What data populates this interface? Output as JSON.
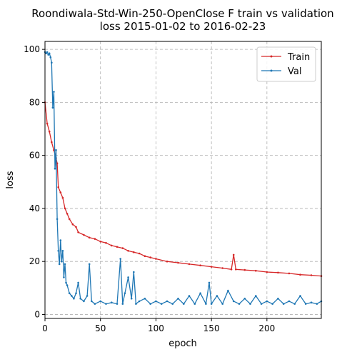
{
  "chart_data": {
    "type": "line",
    "title_lines": [
      "Roondiwala-Std-Win-250-OpenClose F train vs validation",
      "loss 2015-01-02 to 2016-02-23"
    ],
    "xlabel": "epoch",
    "ylabel": "loss",
    "xlim": [
      0,
      249
    ],
    "ylim": [
      -1.5,
      103
    ],
    "xticks": [
      0,
      50,
      100,
      150,
      200
    ],
    "yticks": [
      0,
      20,
      40,
      60,
      80,
      100
    ],
    "grid": true,
    "legend_position": "top-right",
    "series": [
      {
        "name": "Train",
        "color": "#d62728",
        "points": [
          [
            0,
            80
          ],
          [
            2,
            72
          ],
          [
            4,
            69
          ],
          [
            6,
            65
          ],
          [
            8,
            62
          ],
          [
            10,
            59
          ],
          [
            11,
            57
          ],
          [
            12,
            48
          ],
          [
            14,
            46
          ],
          [
            16,
            44
          ],
          [
            18,
            40
          ],
          [
            20,
            38
          ],
          [
            22,
            36
          ],
          [
            25,
            34
          ],
          [
            28,
            33
          ],
          [
            30,
            31
          ],
          [
            35,
            30
          ],
          [
            40,
            29
          ],
          [
            45,
            28.5
          ],
          [
            50,
            27.5
          ],
          [
            55,
            27
          ],
          [
            60,
            26
          ],
          [
            65,
            25.5
          ],
          [
            70,
            25
          ],
          [
            75,
            24
          ],
          [
            80,
            23.5
          ],
          [
            85,
            23
          ],
          [
            90,
            22
          ],
          [
            95,
            21.5
          ],
          [
            100,
            21
          ],
          [
            110,
            20
          ],
          [
            120,
            19.5
          ],
          [
            130,
            19
          ],
          [
            140,
            18.5
          ],
          [
            150,
            18
          ],
          [
            160,
            17.5
          ],
          [
            168,
            17
          ],
          [
            170,
            22.5
          ],
          [
            172,
            17
          ],
          [
            180,
            16.8
          ],
          [
            190,
            16.5
          ],
          [
            200,
            16
          ],
          [
            210,
            15.8
          ],
          [
            220,
            15.5
          ],
          [
            230,
            15
          ],
          [
            240,
            14.8
          ],
          [
            249,
            14.5
          ]
        ]
      },
      {
        "name": "Val",
        "color": "#1f77b4",
        "points": [
          [
            0,
            99
          ],
          [
            1,
            98.5
          ],
          [
            2,
            99
          ],
          [
            3,
            98
          ],
          [
            4,
            98.5
          ],
          [
            5,
            97
          ],
          [
            6,
            95
          ],
          [
            7,
            78
          ],
          [
            8,
            84
          ],
          [
            9,
            55
          ],
          [
            10,
            62
          ],
          [
            11,
            36
          ],
          [
            12,
            24
          ],
          [
            13,
            19
          ],
          [
            14,
            28
          ],
          [
            15,
            20
          ],
          [
            16,
            24
          ],
          [
            17,
            14
          ],
          [
            18,
            19
          ],
          [
            19,
            12
          ],
          [
            20,
            11
          ],
          [
            22,
            8
          ],
          [
            24,
            7
          ],
          [
            26,
            6
          ],
          [
            28,
            8
          ],
          [
            30,
            12
          ],
          [
            32,
            6
          ],
          [
            35,
            5
          ],
          [
            38,
            7
          ],
          [
            40,
            19
          ],
          [
            42,
            5
          ],
          [
            45,
            4
          ],
          [
            50,
            5
          ],
          [
            55,
            4
          ],
          [
            60,
            4.5
          ],
          [
            65,
            4
          ],
          [
            68,
            21
          ],
          [
            70,
            4
          ],
          [
            72,
            8
          ],
          [
            75,
            14
          ],
          [
            78,
            6
          ],
          [
            80,
            16
          ],
          [
            82,
            4
          ],
          [
            85,
            5
          ],
          [
            90,
            6
          ],
          [
            95,
            4
          ],
          [
            100,
            5
          ],
          [
            105,
            4
          ],
          [
            110,
            5
          ],
          [
            115,
            4
          ],
          [
            120,
            6
          ],
          [
            125,
            4
          ],
          [
            130,
            7
          ],
          [
            135,
            4
          ],
          [
            140,
            8
          ],
          [
            145,
            4
          ],
          [
            148,
            12
          ],
          [
            150,
            4
          ],
          [
            155,
            7
          ],
          [
            160,
            4
          ],
          [
            165,
            9
          ],
          [
            170,
            5
          ],
          [
            175,
            4
          ],
          [
            180,
            6
          ],
          [
            185,
            4
          ],
          [
            190,
            7
          ],
          [
            195,
            4
          ],
          [
            200,
            5
          ],
          [
            205,
            4
          ],
          [
            210,
            6
          ],
          [
            215,
            4
          ],
          [
            220,
            5
          ],
          [
            225,
            4
          ],
          [
            230,
            7
          ],
          [
            235,
            4
          ],
          [
            240,
            4.5
          ],
          [
            245,
            4
          ],
          [
            249,
            5
          ]
        ]
      }
    ]
  }
}
